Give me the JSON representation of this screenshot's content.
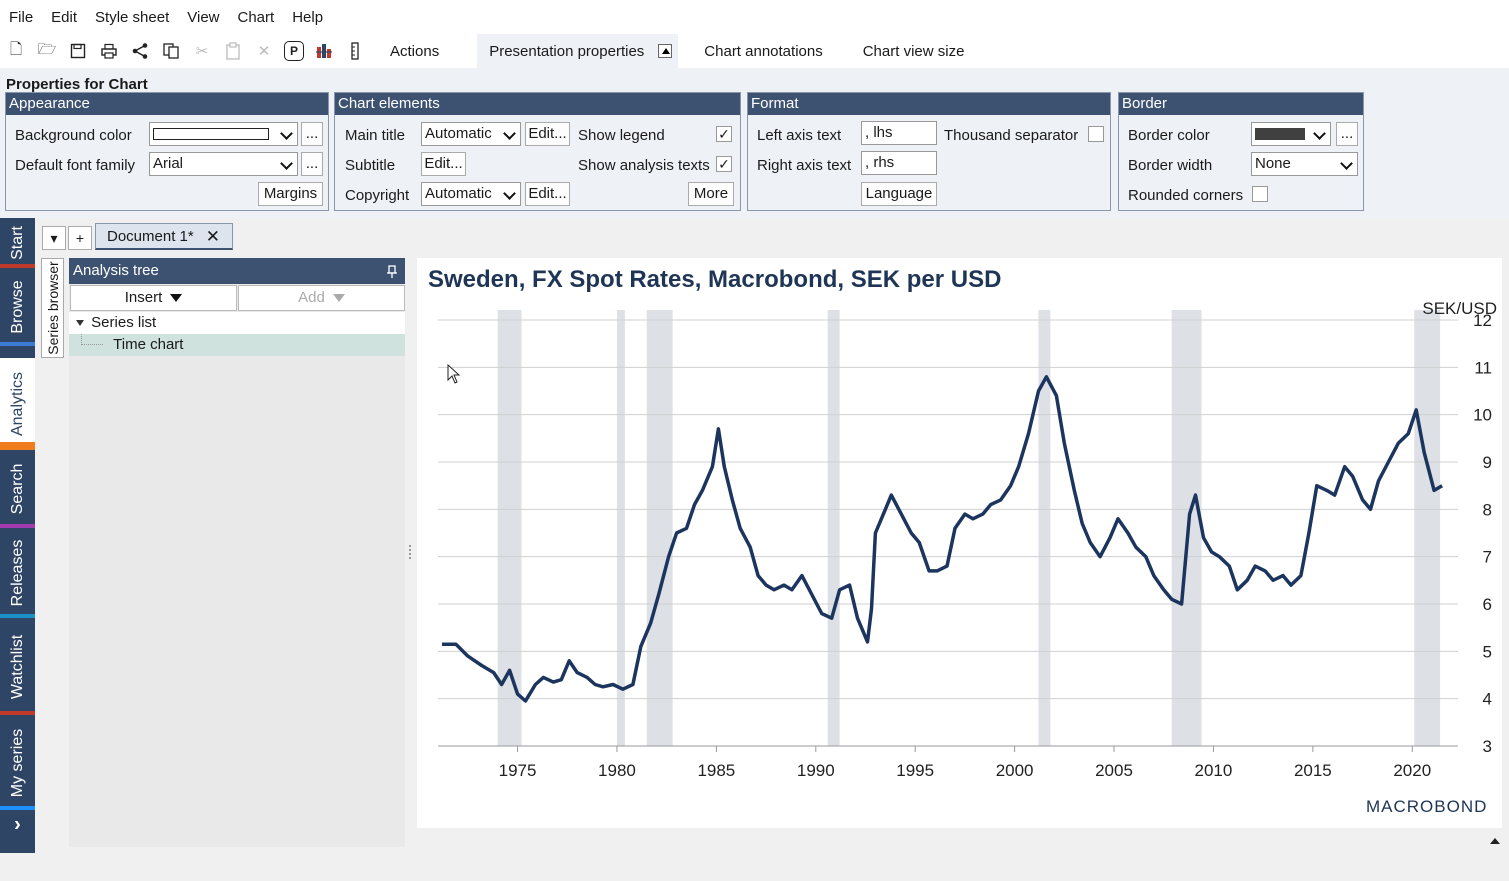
{
  "menu": [
    "File",
    "Edit",
    "Style sheet",
    "View",
    "Chart",
    "Help"
  ],
  "toolbar": {
    "icons": [
      "new-document-icon",
      "open-folder-icon",
      "save-icon",
      "print-icon",
      "share-icon",
      "copy-icon",
      "cut-icon",
      "paste-icon",
      "delete-icon",
      "presentation-mode-icon",
      "bar-chart-icon",
      "ruler-icon"
    ],
    "presentation_icon_glyph": "P",
    "tabs": [
      "Actions",
      "Presentation properties",
      "Chart annotations",
      "Chart view size"
    ]
  },
  "properties": {
    "title": "Properties for Chart",
    "appearance": {
      "heading": "Appearance",
      "background_color_label": "Background color",
      "default_font_family_label": "Default font family",
      "font_value": "Arial",
      "ellipsis": "...",
      "margins_button": "Margins"
    },
    "chart_elements": {
      "heading": "Chart elements",
      "main_title_label": "Main title",
      "main_title_value": "Automatic",
      "subtitle_label": "Subtitle",
      "copyright_label": "Copyright",
      "copyright_value": "Automatic",
      "edit_button": "Edit...",
      "show_legend_label": "Show legend",
      "show_analysis_texts_label": "Show analysis texts",
      "more_button": "More"
    },
    "format": {
      "heading": "Format",
      "left_axis_label": "Left axis text",
      "left_axis_value": ", lhs",
      "right_axis_label": "Right axis text",
      "right_axis_value": ", rhs",
      "thousand_separator_label": "Thousand separator",
      "language_button": "Language"
    },
    "border": {
      "heading": "Border",
      "border_color_label": "Border color",
      "border_color": "#404040",
      "border_width_label": "Border width",
      "border_width_value": "None",
      "rounded_corners_label": "Rounded corners",
      "ellipsis": "..."
    }
  },
  "sidebar": [
    {
      "label": "Start",
      "color": "#c0392b"
    },
    {
      "label": "Browse",
      "color": "#3a7bd5"
    },
    {
      "label": "Analytics",
      "color": "#f07c1e"
    },
    {
      "label": "Search",
      "color": "#a23bb0"
    },
    {
      "label": "Releases",
      "color": "#1e90c8"
    },
    {
      "label": "Watchlist",
      "color": "#c0392b"
    },
    {
      "label": "My series",
      "color": "#1e90ff"
    }
  ],
  "sidebar_more": "›",
  "document": {
    "dropdown_symbol": "▾",
    "add_symbol": "+",
    "tab_label": "Document 1*",
    "close_symbol": "✕"
  },
  "series_browser_label": "Series browser",
  "analysis_tree": {
    "title": "Analysis tree",
    "insert_button": "Insert",
    "add_button": "Add",
    "items": [
      "Series list",
      "Time chart"
    ]
  },
  "chart_data": {
    "type": "line",
    "title": "Sweden, FX Spot Rates, Macrobond, SEK per USD",
    "unit_label": "SEK/USD",
    "y_axis_side": "right",
    "ylim": [
      3,
      12
    ],
    "y_ticks": [
      3,
      4,
      5,
      6,
      7,
      8,
      9,
      10,
      11,
      12
    ],
    "xlim": [
      1971,
      2022.3
    ],
    "x_ticks": [
      1975,
      1980,
      1985,
      1990,
      1995,
      2000,
      2005,
      2010,
      2015,
      2020
    ],
    "grid": true,
    "line_color": "#1c355e",
    "shade_color": "#dde1e6",
    "recessions": [
      [
        1974.0,
        1975.2
      ],
      [
        1980.0,
        1980.4
      ],
      [
        1981.5,
        1982.8
      ],
      [
        1990.6,
        1991.2
      ],
      [
        2001.2,
        2001.8
      ],
      [
        2007.9,
        2009.4
      ],
      [
        2020.1,
        2021.4
      ]
    ],
    "series": [
      {
        "x": [
          1971.2,
          1971.9,
          1972.5,
          1973.2,
          1973.8,
          1974.2,
          1974.6,
          1975.0,
          1975.4,
          1975.9,
          1976.3,
          1976.8,
          1977.2,
          1977.6,
          1978.0,
          1978.5,
          1978.9,
          1979.3,
          1979.8,
          1980.3,
          1980.8,
          1981.2,
          1981.7,
          1982.1,
          1982.6,
          1983.0,
          1983.5,
          1983.9,
          1984.3,
          1984.8,
          1985.1,
          1985.4,
          1985.8,
          1986.2,
          1986.7,
          1987.1,
          1987.5,
          1987.9,
          1988.4,
          1988.8,
          1989.3,
          1989.8,
          1990.3,
          1990.8,
          1991.2,
          1991.7,
          1992.1,
          1992.6,
          1992.8,
          1993.0,
          1993.4,
          1993.8,
          1994.3,
          1994.8,
          1995.2,
          1995.7,
          1996.1,
          1996.6,
          1997.0,
          1997.5,
          1997.9,
          1998.4,
          1998.8,
          1999.3,
          1999.8,
          2000.2,
          2000.7,
          2001.2,
          2001.6,
          2002.1,
          2002.5,
          2003.0,
          2003.4,
          2003.8,
          2004.3,
          2004.8,
          2005.2,
          2005.7,
          2006.1,
          2006.6,
          2007.0,
          2007.5,
          2007.9,
          2008.4,
          2008.8,
          2009.1,
          2009.5,
          2009.9,
          2010.3,
          2010.8,
          2011.2,
          2011.7,
          2012.1,
          2012.6,
          2013.0,
          2013.5,
          2013.9,
          2014.4,
          2014.8,
          2015.2,
          2015.7,
          2016.1,
          2016.6,
          2017.0,
          2017.5,
          2017.9,
          2018.3,
          2018.8,
          2019.3,
          2019.8,
          2020.2,
          2020.6,
          2021.1,
          2021.5
        ],
        "y": [
          5.15,
          5.15,
          4.9,
          4.7,
          4.55,
          4.3,
          4.6,
          4.1,
          3.95,
          4.3,
          4.45,
          4.35,
          4.4,
          4.8,
          4.55,
          4.45,
          4.3,
          4.25,
          4.3,
          4.2,
          4.3,
          5.1,
          5.6,
          6.2,
          7.0,
          7.5,
          7.6,
          8.1,
          8.4,
          8.9,
          9.7,
          8.9,
          8.2,
          7.6,
          7.2,
          6.6,
          6.4,
          6.3,
          6.4,
          6.3,
          6.6,
          6.2,
          5.8,
          5.7,
          6.3,
          6.4,
          5.7,
          5.2,
          5.9,
          7.5,
          7.9,
          8.3,
          7.9,
          7.5,
          7.3,
          6.7,
          6.7,
          6.8,
          7.6,
          7.9,
          7.8,
          7.9,
          8.1,
          8.2,
          8.5,
          8.9,
          9.6,
          10.5,
          10.8,
          10.4,
          9.4,
          8.4,
          7.7,
          7.3,
          7.0,
          7.4,
          7.8,
          7.5,
          7.2,
          7.0,
          6.6,
          6.3,
          6.1,
          6.0,
          7.9,
          8.3,
          7.4,
          7.1,
          7.0,
          6.8,
          6.3,
          6.5,
          6.8,
          6.7,
          6.5,
          6.6,
          6.4,
          6.6,
          7.5,
          8.5,
          8.4,
          8.3,
          8.9,
          8.7,
          8.2,
          8.0,
          8.6,
          9.0,
          9.4,
          9.6,
          10.1,
          9.2,
          8.4,
          8.5
        ]
      }
    ]
  },
  "logo_text": "MACROBOND"
}
